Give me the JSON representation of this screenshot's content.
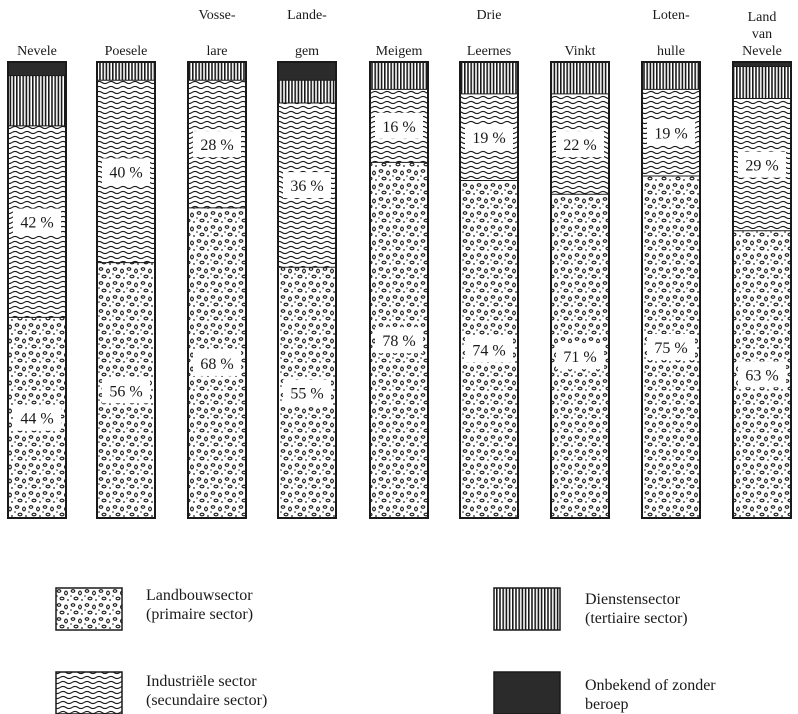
{
  "chart_data": {
    "type": "bar",
    "stacked": true,
    "normalized": true,
    "unit": "%",
    "categories": [
      [
        "Nevele"
      ],
      [
        "Poesele"
      ],
      [
        "Vosse-",
        "lare"
      ],
      [
        "Lande-",
        "gem"
      ],
      [
        "Meigem"
      ],
      [
        "Drie",
        "Leernes"
      ],
      [
        "Vinkt"
      ],
      [
        "Loten-",
        "hulle"
      ],
      [
        "Land",
        "van",
        "Nevele"
      ]
    ],
    "series": [
      {
        "name": "Landbouwsector (primaire sector)",
        "pattern": "dots",
        "values": [
          44,
          56,
          68,
          55,
          78,
          74,
          71,
          75,
          63
        ]
      },
      {
        "name": "Industriële sector (secundaire sector)",
        "pattern": "waves",
        "values": [
          42,
          40,
          28,
          36,
          16,
          19,
          22,
          19,
          29
        ]
      },
      {
        "name": "Dienstensector (tertiaire sector)",
        "pattern": "vertical-lines",
        "values": [
          11,
          4,
          4,
          5,
          6,
          7,
          7,
          6,
          7
        ]
      },
      {
        "name": "Onbekend of zonder beroep",
        "pattern": "solid",
        "values": [
          3,
          0,
          0,
          4,
          0,
          0,
          0,
          0,
          1
        ]
      }
    ],
    "labels": {
      "Landbouwsector (primaire sector)": [
        "44 %",
        "56 %",
        "68 %",
        "55 %",
        "78 %",
        "74 %",
        "71 %",
        "75 %",
        "63 %"
      ],
      "Industriële sector (secundaire sector)": [
        "42 %",
        "40 %",
        "28 %",
        "36 %",
        "16 %",
        "19 %",
        "22 %",
        "19 %",
        "29 %"
      ]
    },
    "ylim": [
      0,
      100
    ]
  },
  "legend": [
    {
      "lines": [
        "Landbouwsector",
        "(primaire sector)"
      ],
      "pattern": "dots"
    },
    {
      "lines": [
        "Dienstensector",
        "(tertiaire sector)"
      ],
      "pattern": "vertical-lines"
    },
    {
      "lines": [
        "Industriële sector",
        "(secundaire sector)"
      ],
      "pattern": "waves"
    },
    {
      "lines": [
        "Onbekend of zonder",
        "beroep"
      ],
      "pattern": "solid"
    }
  ],
  "colors": {
    "ink": "#1a1a1a",
    "paper": "#ffffff",
    "solid": "#2b2b2b"
  }
}
